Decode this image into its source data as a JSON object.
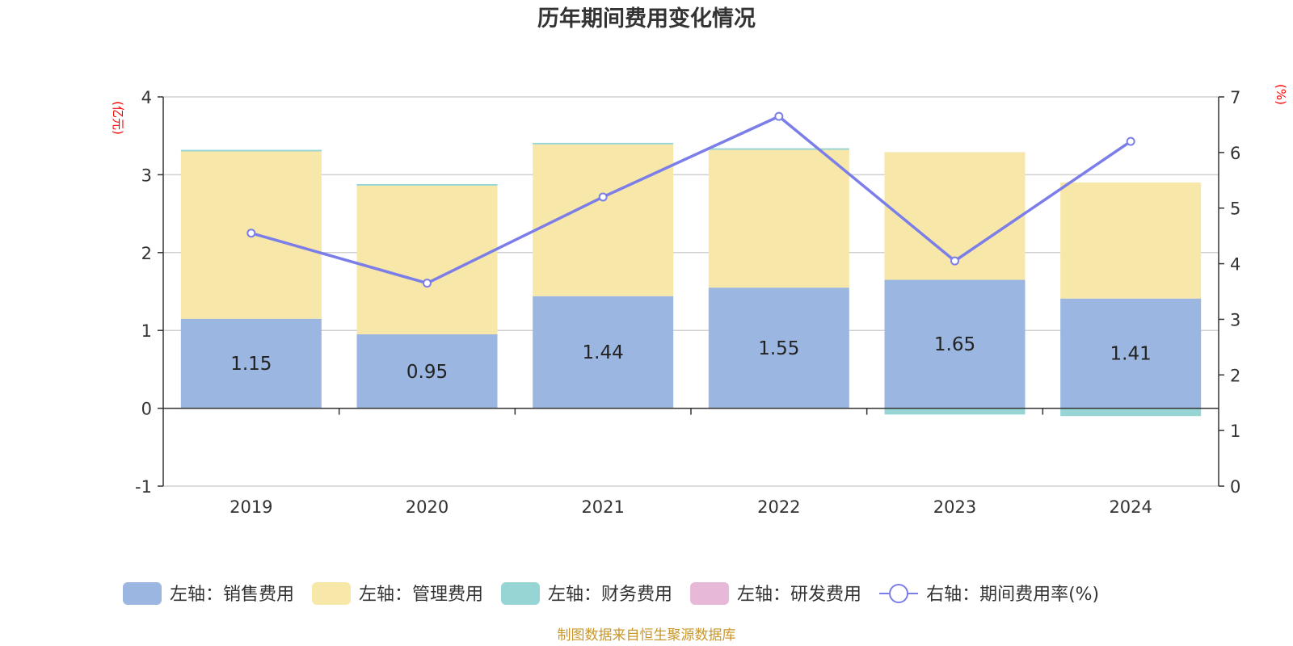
{
  "chart_data": {
    "type": "bar",
    "stacked": true,
    "title": "历年期间费用变化情况",
    "categories": [
      "2019",
      "2020",
      "2021",
      "2022",
      "2023",
      "2024"
    ],
    "left_axis": {
      "unit": "(亿元)",
      "ylim": [
        -1,
        4
      ],
      "ticks": [
        "-1",
        "0",
        "1",
        "2",
        "3",
        "4"
      ]
    },
    "right_axis": {
      "unit": "(%)",
      "ylim": [
        0,
        7
      ],
      "ticks": [
        "0",
        "1",
        "2",
        "3",
        "4",
        "5",
        "6",
        "7"
      ]
    },
    "series": [
      {
        "name": "左轴：销售费用",
        "axis": "left",
        "type": "bar",
        "color": "#9bb6e0",
        "values": [
          1.15,
          0.95,
          1.44,
          1.55,
          1.65,
          1.41
        ],
        "labels": [
          "1.15",
          "0.95",
          "1.44",
          "1.55",
          "1.65",
          "1.41"
        ]
      },
      {
        "name": "左轴：管理费用",
        "axis": "left",
        "type": "bar",
        "color": "#f7e7a9",
        "values": [
          2.15,
          1.91,
          1.95,
          1.77,
          1.64,
          1.49
        ]
      },
      {
        "name": "左轴：财务费用",
        "axis": "left",
        "type": "bar",
        "color": "#97d4d4",
        "values": [
          0.02,
          0.02,
          0.02,
          0.02,
          -0.08,
          -0.1
        ]
      },
      {
        "name": "左轴：研发费用",
        "axis": "left",
        "type": "bar",
        "color": "#e8b8d8",
        "values": [
          0,
          0,
          0,
          0,
          0,
          0
        ]
      },
      {
        "name": "右轴：期间费用率(%)",
        "axis": "right",
        "type": "line",
        "color": "#7b7ee8",
        "values": [
          4.55,
          3.65,
          5.2,
          6.65,
          4.05,
          6.2
        ]
      }
    ],
    "source": "制图数据来自恒生聚源数据库"
  }
}
